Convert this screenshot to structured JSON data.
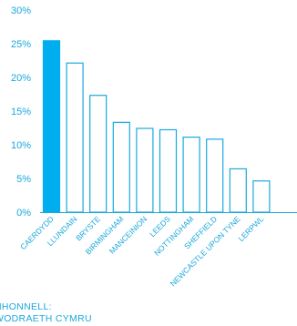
{
  "chart_data": {
    "type": "bar",
    "categories": [
      "CAERDYDD",
      "LLUNDAIN",
      "BRYSTE",
      "BIRMINGHAM",
      "MANCEINION",
      "LEEDS",
      "NOTTINGHAM",
      "SHEFFIELD",
      "NEWCASTLE UPON TYNE",
      "LERPWL"
    ],
    "values": [
      25.5,
      22.2,
      17.4,
      13.4,
      12.5,
      12.3,
      11.2,
      10.9,
      6.5,
      4.7
    ],
    "highlight_index": 0,
    "ylim": [
      0,
      30
    ],
    "yticks": [
      "0%",
      "5%",
      "10%",
      "15%",
      "20%",
      "25%",
      "30%"
    ],
    "title": "",
    "xlabel": "",
    "ylabel": "",
    "grid": false,
    "colors": {
      "highlight": "#00aeef",
      "bar_outline": "#1aa9dc",
      "text": "#1aa9dc"
    }
  },
  "source": {
    "line1": "NHONNELL:",
    "line2": "WODRAETH CYMRU"
  }
}
